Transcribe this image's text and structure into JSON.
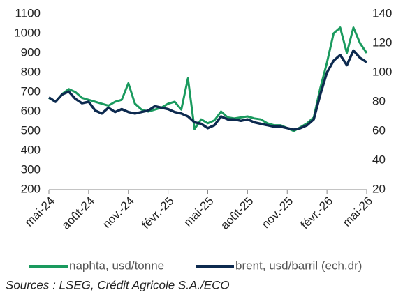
{
  "chart_data": {
    "type": "line",
    "x": [
      0,
      0.5,
      1,
      1.5,
      2,
      2.5,
      3,
      3.5,
      4,
      4.5,
      5,
      5.5,
      6,
      6.5,
      7,
      7.5,
      8,
      8.5,
      9,
      9.5,
      10,
      10.5,
      11,
      11.5,
      12,
      12.5,
      13,
      13.5,
      14,
      14.5,
      15,
      15.5,
      16,
      16.5,
      17,
      17.5,
      18,
      18.5,
      19,
      19.5,
      20,
      20.5,
      21,
      21.5,
      22,
      22.5,
      23,
      23.5,
      24
    ],
    "xlim": [
      0,
      24
    ],
    "xticks": [
      {
        "value": 0,
        "label": "mai-24"
      },
      {
        "value": 3,
        "label": "août-24"
      },
      {
        "value": 6,
        "label": "nov.-24"
      },
      {
        "value": 9,
        "label": "févr.-25"
      },
      {
        "value": 12,
        "label": "mai-25"
      },
      {
        "value": 15,
        "label": "août-25"
      },
      {
        "value": 18,
        "label": "nov.-25"
      },
      {
        "value": 21,
        "label": "févr.-26"
      },
      {
        "value": 24,
        "label": "mai-26"
      }
    ],
    "ylim": [
      200,
      1100
    ],
    "yticks": [
      200,
      300,
      400,
      500,
      600,
      700,
      800,
      900,
      1000,
      1100
    ],
    "y2lim": [
      20,
      140
    ],
    "y2ticks": [
      20,
      40,
      60,
      80,
      100,
      120,
      140
    ],
    "series": [
      {
        "name": "naphta, usd/tonne",
        "color": "#1a9a5e",
        "values": [
          670,
          650,
          690,
          715,
          700,
          670,
          660,
          650,
          640,
          630,
          650,
          660,
          745,
          640,
          610,
          600,
          610,
          620,
          640,
          650,
          610,
          770,
          510,
          560,
          540,
          555,
          600,
          570,
          565,
          570,
          575,
          565,
          560,
          540,
          530,
          530,
          515,
          500,
          520,
          540,
          570,
          720,
          850,
          1000,
          1030,
          900,
          1030,
          950,
          900
        ]
      },
      {
        "name": "brent, usd/barril (ech.dr)",
        "color": "#0d2a4f",
        "axis": "y2",
        "values": [
          83,
          80,
          85,
          87,
          82,
          79,
          80,
          74,
          72,
          76,
          73,
          75,
          73,
          72,
          73,
          74,
          77,
          76,
          75,
          73,
          72,
          70,
          66,
          65,
          62,
          64,
          70,
          68,
          68,
          67,
          68,
          66,
          65,
          64,
          63,
          63,
          62,
          61,
          62,
          64,
          68,
          85,
          100,
          108,
          112,
          105,
          115,
          110,
          107
        ]
      }
    ],
    "source": "Sources : LSEG, Crédit Agricole S.A./ECO"
  }
}
